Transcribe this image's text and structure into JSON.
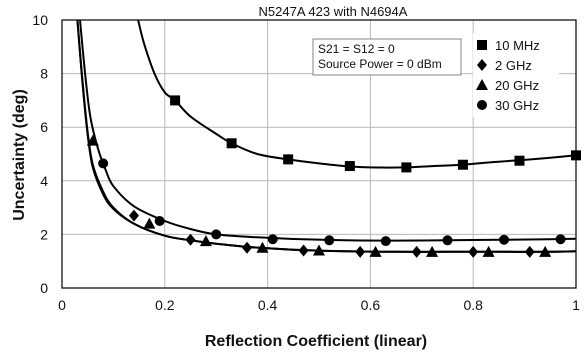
{
  "chart_data": {
    "type": "line",
    "title": "N5247A 423 with N4694A",
    "xlabel": "Reflection Coefficient (linear)",
    "ylabel": "Uncertainty (deg)",
    "xlim": [
      0,
      1
    ],
    "ylim": [
      0,
      10
    ],
    "xticks": [
      0,
      0.2,
      0.4,
      0.6,
      0.8,
      1
    ],
    "yticks": [
      0,
      2,
      4,
      6,
      8,
      10
    ],
    "xtick_labels": [
      "0",
      "0.2",
      "0.4",
      "0.6",
      "0.8",
      "1"
    ],
    "ytick_labels": [
      "0",
      "2",
      "4",
      "6",
      "8",
      "10"
    ],
    "grid": true,
    "legend_position": "top-right",
    "annotation": [
      "S21 = S12 = 0",
      "Source Power = 0 dBm"
    ],
    "series": [
      {
        "name": "10 MHz",
        "marker": "square",
        "curve": [
          [
            0.148,
            10
          ],
          [
            0.16,
            9.1
          ],
          [
            0.18,
            8.0
          ],
          [
            0.2,
            7.3
          ],
          [
            0.22,
            7.0
          ],
          [
            0.25,
            6.4
          ],
          [
            0.3,
            5.75
          ],
          [
            0.33,
            5.4
          ],
          [
            0.38,
            5.0
          ],
          [
            0.44,
            4.8
          ],
          [
            0.5,
            4.65
          ],
          [
            0.55,
            4.55
          ],
          [
            0.6,
            4.5
          ],
          [
            0.67,
            4.5
          ],
          [
            0.72,
            4.55
          ],
          [
            0.78,
            4.6
          ],
          [
            0.84,
            4.7
          ],
          [
            0.9,
            4.78
          ],
          [
            0.95,
            4.86
          ],
          [
            1.0,
            4.95
          ]
        ],
        "points": [
          [
            0.22,
            7.0
          ],
          [
            0.33,
            5.4
          ],
          [
            0.44,
            4.8
          ],
          [
            0.56,
            4.55
          ],
          [
            0.67,
            4.5
          ],
          [
            0.78,
            4.6
          ],
          [
            0.89,
            4.75
          ],
          [
            1.0,
            4.95
          ]
        ]
      },
      {
        "name": "2 GHz",
        "marker": "diamond",
        "curve": [
          [
            0.03,
            10
          ],
          [
            0.04,
            7.7
          ],
          [
            0.05,
            5.8
          ],
          [
            0.06,
            4.6
          ],
          [
            0.08,
            3.6
          ],
          [
            0.1,
            3.0
          ],
          [
            0.14,
            2.4
          ],
          [
            0.2,
            1.95
          ],
          [
            0.25,
            1.78
          ],
          [
            0.3,
            1.65
          ],
          [
            0.37,
            1.52
          ],
          [
            0.45,
            1.43
          ],
          [
            0.55,
            1.37
          ],
          [
            0.65,
            1.35
          ],
          [
            0.75,
            1.35
          ],
          [
            0.85,
            1.35
          ],
          [
            0.95,
            1.35
          ],
          [
            1.0,
            1.37
          ]
        ],
        "points": [
          [
            0.14,
            2.7
          ],
          [
            0.25,
            1.8
          ],
          [
            0.36,
            1.5
          ],
          [
            0.47,
            1.4
          ],
          [
            0.58,
            1.35
          ],
          [
            0.69,
            1.35
          ],
          [
            0.8,
            1.35
          ],
          [
            0.91,
            1.35
          ]
        ]
      },
      {
        "name": "20 GHz",
        "marker": "triangle",
        "curve": [
          [
            0.03,
            10
          ],
          [
            0.04,
            7.6
          ],
          [
            0.05,
            5.7
          ],
          [
            0.06,
            4.5
          ],
          [
            0.08,
            3.5
          ],
          [
            0.1,
            2.95
          ],
          [
            0.14,
            2.4
          ],
          [
            0.2,
            1.95
          ],
          [
            0.25,
            1.78
          ],
          [
            0.3,
            1.65
          ],
          [
            0.37,
            1.52
          ],
          [
            0.45,
            1.43
          ],
          [
            0.55,
            1.37
          ],
          [
            0.65,
            1.35
          ],
          [
            0.75,
            1.35
          ],
          [
            0.85,
            1.35
          ],
          [
            0.95,
            1.35
          ],
          [
            1.0,
            1.37
          ]
        ],
        "points": [
          [
            0.06,
            5.5
          ],
          [
            0.17,
            2.4
          ],
          [
            0.28,
            1.75
          ],
          [
            0.39,
            1.5
          ],
          [
            0.5,
            1.4
          ],
          [
            0.61,
            1.35
          ],
          [
            0.72,
            1.35
          ],
          [
            0.83,
            1.35
          ],
          [
            0.94,
            1.35
          ]
        ]
      },
      {
        "name": "30 GHz",
        "marker": "circle",
        "curve": [
          [
            0.035,
            10
          ],
          [
            0.045,
            8.0
          ],
          [
            0.055,
            6.4
          ],
          [
            0.07,
            5.2
          ],
          [
            0.085,
            4.4
          ],
          [
            0.1,
            3.8
          ],
          [
            0.14,
            3.05
          ],
          [
            0.2,
            2.5
          ],
          [
            0.25,
            2.2
          ],
          [
            0.3,
            2.0
          ],
          [
            0.37,
            1.9
          ],
          [
            0.45,
            1.83
          ],
          [
            0.55,
            1.78
          ],
          [
            0.65,
            1.77
          ],
          [
            0.75,
            1.78
          ],
          [
            0.85,
            1.8
          ],
          [
            0.95,
            1.82
          ],
          [
            1.0,
            1.84
          ]
        ],
        "points": [
          [
            0.08,
            4.65
          ],
          [
            0.19,
            2.5
          ],
          [
            0.3,
            2.0
          ],
          [
            0.41,
            1.82
          ],
          [
            0.52,
            1.78
          ],
          [
            0.63,
            1.75
          ],
          [
            0.75,
            1.78
          ],
          [
            0.86,
            1.8
          ],
          [
            0.97,
            1.82
          ]
        ]
      }
    ]
  }
}
